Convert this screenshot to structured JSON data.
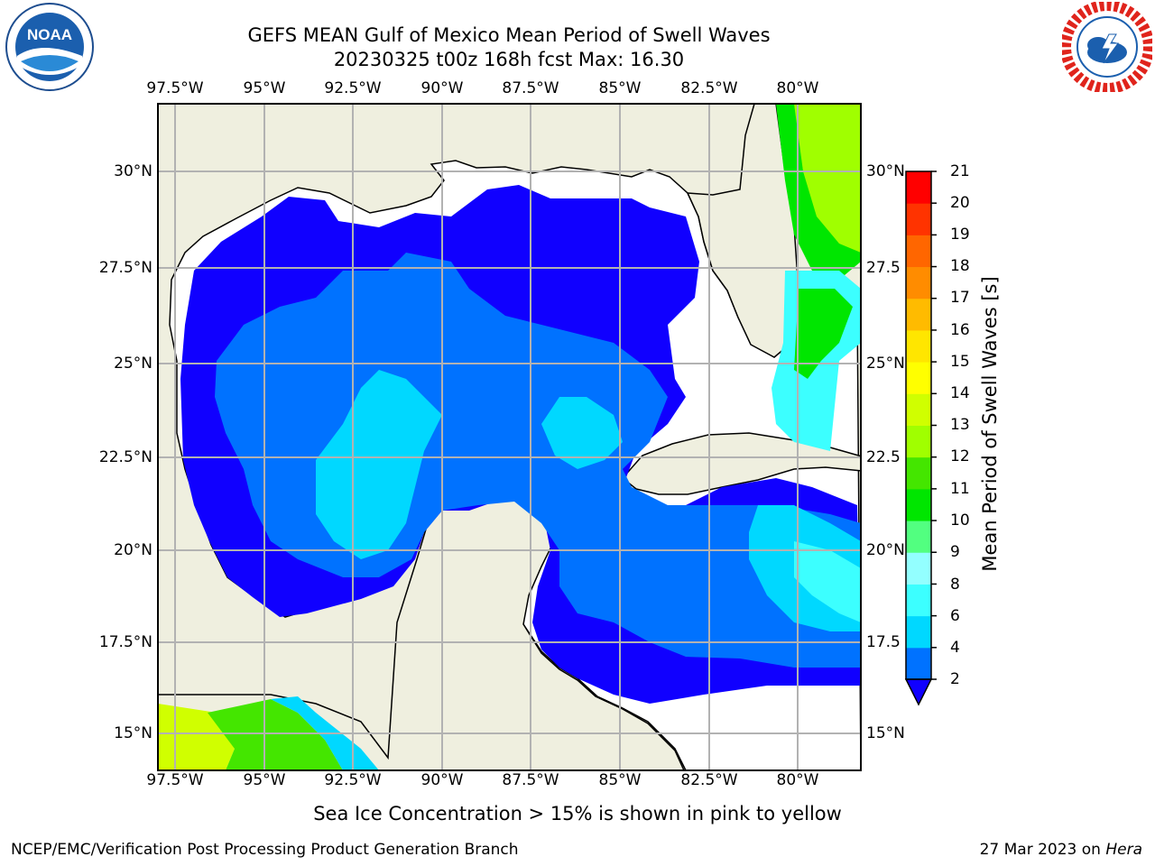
{
  "title": {
    "line1": "GEFS MEAN Gulf of Mexico Mean Period of Swell Waves",
    "line2": "20230325 t00z 168h fcst   Max: 16.30"
  },
  "map": {
    "lon_labels": [
      "97.5°W",
      "95°W",
      "92.5°W",
      "90°W",
      "87.5°W",
      "85°W",
      "82.5°W",
      "80°W"
    ],
    "lat_labels_left": [
      "30°N",
      "27.5°N",
      "25°N",
      "22.5°N",
      "20°N",
      "17.5°N",
      "15°N"
    ],
    "lat_labels_right": [
      "30°N",
      "27.5",
      "25°N",
      "22.5",
      "20°N",
      "17.5",
      "15°N"
    ],
    "colors": {
      "land": "#efefdf",
      "grid": "#b2b2b2",
      "coast": "#000000"
    }
  },
  "colorbar": {
    "title": "Mean Period of Swell Waves [s]",
    "ticks": [
      "2",
      "4",
      "6",
      "8",
      "9",
      "10",
      "11",
      "12",
      "13",
      "14",
      "15",
      "16",
      "17",
      "18",
      "19",
      "20",
      "21"
    ],
    "colors": [
      "#0072ff",
      "#00d8ff",
      "#3cffff",
      "#93ffff",
      "#52ff80",
      "#00e600",
      "#44e600",
      "#a0ff00",
      "#d0ff00",
      "#ffff00",
      "#ffe600",
      "#ffbb00",
      "#ff8c00",
      "#ff6600",
      "#ff3300",
      "#ff0000"
    ],
    "extend_color": "#1000ff"
  },
  "footer": {
    "note": "Sea Ice Concentration > 15% is shown in pink to yellow",
    "credit_left": "NCEP/EMC/Verification Post Processing Product Generation Branch",
    "credit_date": "27 Mar 2023 on",
    "credit_machine": "Hera"
  },
  "logos": {
    "left": "noaa-logo",
    "right": "nws-logo",
    "left_text": "NOAA"
  }
}
